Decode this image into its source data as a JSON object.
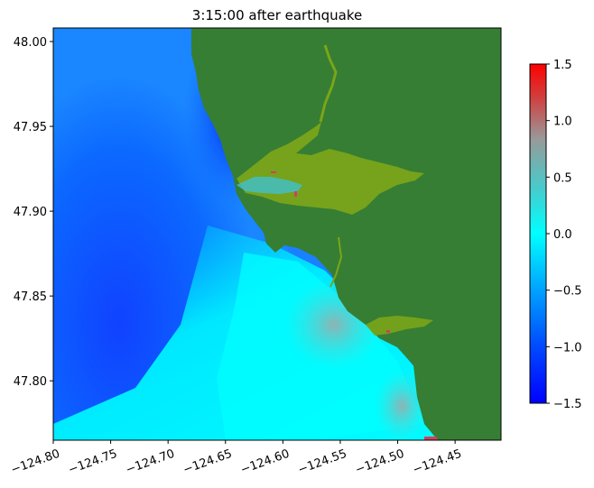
{
  "title": "3:15:00 after earthquake",
  "map": {
    "x_ticks": [
      {
        "value": -124.8,
        "label": "−124.80"
      },
      {
        "value": -124.75,
        "label": "−124.75"
      },
      {
        "value": -124.7,
        "label": "−124.70"
      },
      {
        "value": -124.65,
        "label": "−124.65"
      },
      {
        "value": -124.6,
        "label": "−124.60"
      },
      {
        "value": -124.55,
        "label": "−124.55"
      },
      {
        "value": -124.5,
        "label": "−124.50"
      },
      {
        "value": -124.45,
        "label": "−124.45"
      }
    ],
    "y_ticks": [
      {
        "value": 47.8,
        "label": "47.80"
      },
      {
        "value": 47.85,
        "label": "47.85"
      },
      {
        "value": 47.9,
        "label": "47.90"
      },
      {
        "value": 47.95,
        "label": "47.95"
      },
      {
        "value": 48.0,
        "label": "48.00"
      }
    ],
    "xlim": [
      -124.8,
      -124.41
    ],
    "ylim": [
      47.765,
      48.008
    ]
  },
  "colorbar": {
    "range": [
      -1.5,
      1.5
    ],
    "ticks": [
      {
        "value": 1.5,
        "label": "1.5"
      },
      {
        "value": 1.0,
        "label": "1.0"
      },
      {
        "value": 0.5,
        "label": "0.5"
      },
      {
        "value": 0.0,
        "label": "0.0"
      },
      {
        "value": -0.5,
        "label": "−0.5"
      },
      {
        "value": -1.0,
        "label": "−1.0"
      },
      {
        "value": -1.5,
        "label": "−1.5"
      }
    ]
  },
  "colors": {
    "land": "#367e33",
    "deep_negative": "#0000ff",
    "zero": "#00ffff",
    "positive": "#ff0000",
    "inundation": "#7aa51a"
  }
}
